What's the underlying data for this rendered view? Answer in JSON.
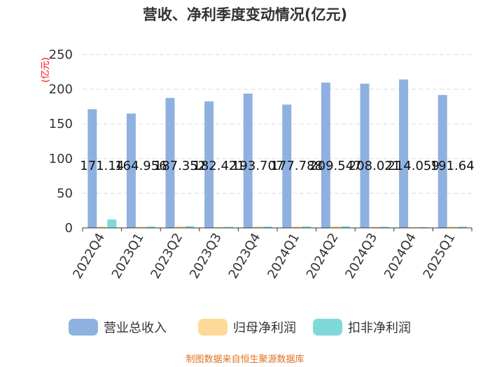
{
  "chart_data": {
    "type": "bar",
    "title": "营收、净利季度变动情况(亿元)",
    "ylabel": "(亿元)",
    "categories": [
      "2022Q4",
      "2023Q1",
      "2023Q2",
      "2023Q3",
      "2023Q4",
      "2024Q1",
      "2024Q2",
      "2024Q3",
      "2024Q4",
      "2025Q1"
    ],
    "ylim": [
      0,
      250
    ],
    "yticks": [
      0,
      50,
      100,
      150,
      200,
      250
    ],
    "series": [
      {
        "name": "营业总收入",
        "color": "#8eb1e0",
        "values": [
          171.14,
          164.956,
          187.352,
          182.421,
          193.707,
          177.788,
          209.547,
          208.021,
          214.059,
          191.64
        ],
        "labels": [
          "171.14",
          "164.956",
          "187.352",
          "182.421",
          "193.707",
          "177.788",
          "209.547",
          "208.021",
          "214.059",
          "191.64"
        ]
      },
      {
        "name": "归母净利润",
        "color": "#ffd99a",
        "values": [
          2.1,
          1.9,
          2.4,
          1.6,
          2.0,
          2.2,
          2.3,
          1.8,
          1.4,
          1.9
        ]
      },
      {
        "name": "扣非净利润",
        "color": "#80d9d9",
        "values": [
          12.2,
          1.9,
          2.5,
          1.5,
          1.9,
          2.1,
          2.3,
          1.7,
          1.2,
          1.8
        ]
      }
    ],
    "grid": "horizontal-dashed",
    "legend": "bottom"
  },
  "source": "制图数据来自恒生聚源数据库"
}
